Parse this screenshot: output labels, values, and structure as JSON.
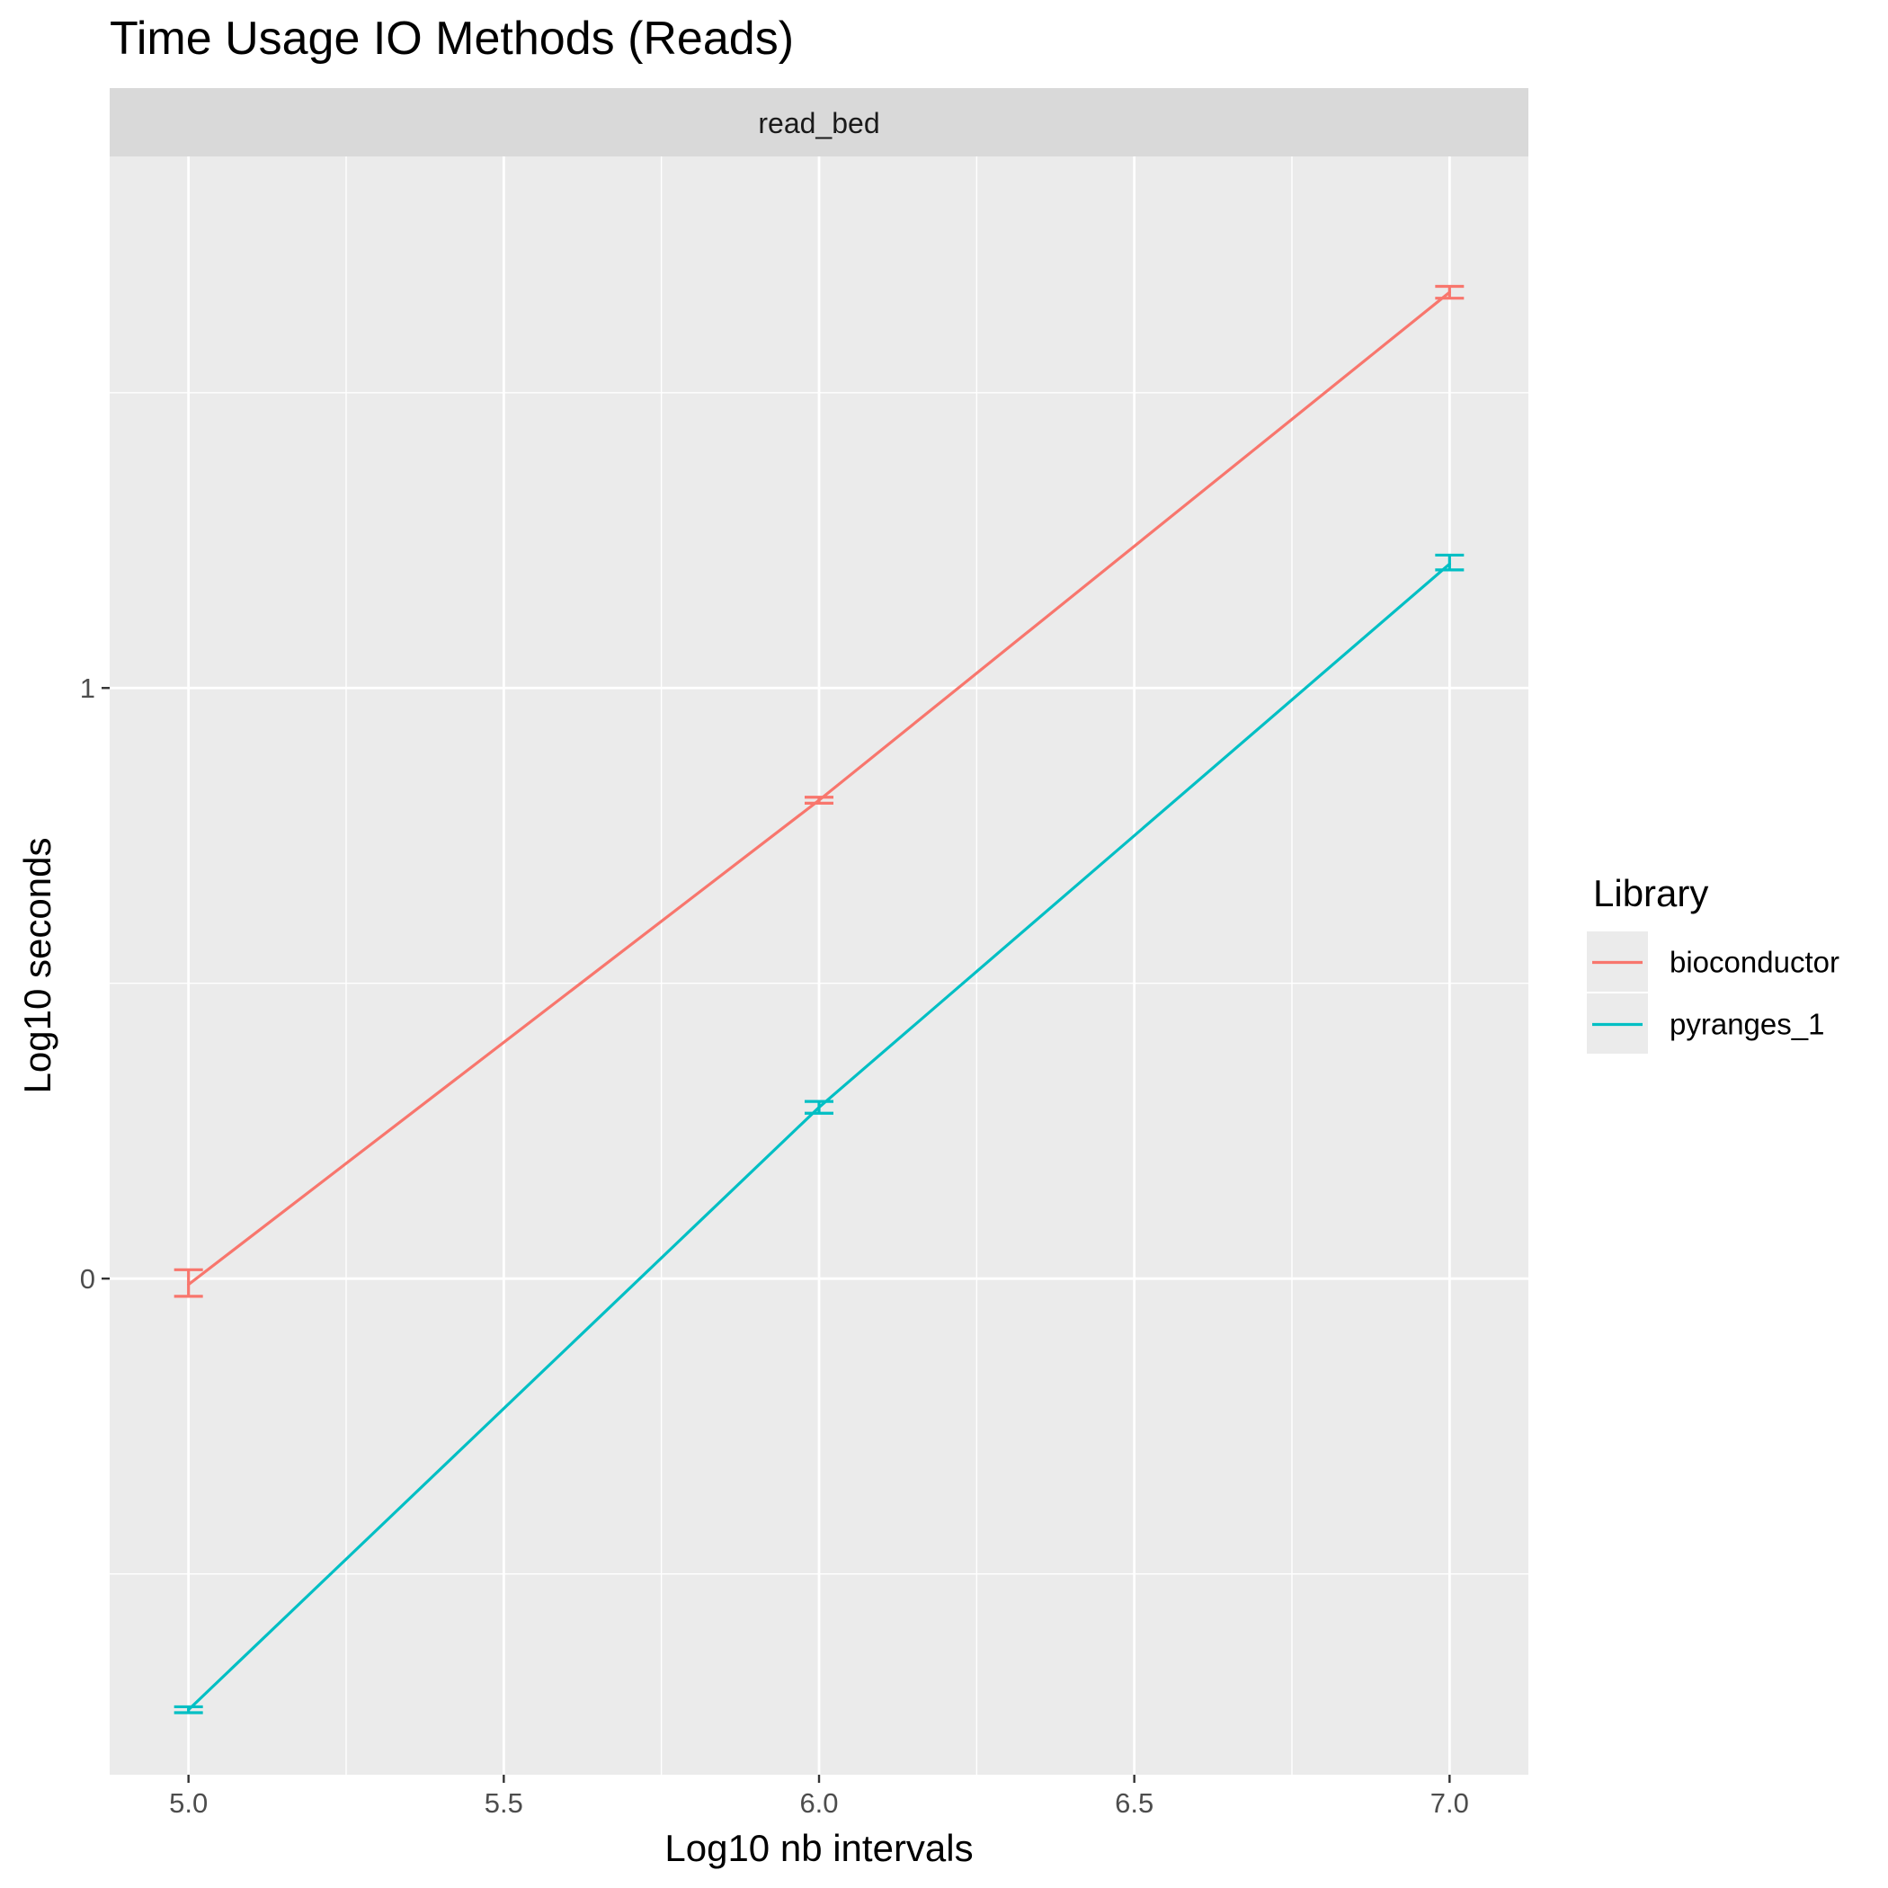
{
  "chart_data": {
    "type": "line",
    "title": "Time Usage IO Methods (Reads)",
    "facet": "read_bed",
    "xlabel": "Log10 nb intervals",
    "ylabel": "Log10 seconds",
    "x": [
      5.0,
      6.0,
      7.0
    ],
    "xlim": [
      4.875,
      7.125
    ],
    "ylim": [
      -0.84,
      1.9
    ],
    "x_ticks": [
      5.0,
      5.5,
      6.0,
      6.5,
      7.0
    ],
    "x_tick_labels": [
      "5.0",
      "5.5",
      "6.0",
      "6.5",
      "7.0"
    ],
    "x_minor_ticks": [
      5.25,
      5.75,
      6.25,
      6.75
    ],
    "y_ticks": [
      0,
      1
    ],
    "y_tick_labels": [
      "0",
      "1"
    ],
    "y_minor_ticks": [
      -0.5,
      0.5,
      1.5
    ],
    "grid": true,
    "legend_title": "Library",
    "legend_position": "right",
    "series": [
      {
        "name": "bioconductor",
        "color": "#F8766D",
        "values": [
          -0.01,
          0.81,
          1.67
        ],
        "error_low": [
          -0.03,
          0.805,
          1.66
        ],
        "error_high": [
          0.015,
          0.815,
          1.68
        ]
      },
      {
        "name": "pyranges_1",
        "color": "#00BFC4",
        "values": [
          -0.73,
          0.29,
          1.21
        ],
        "error_low": [
          -0.735,
          0.28,
          1.2
        ],
        "error_high": [
          -0.725,
          0.3,
          1.225
        ]
      }
    ]
  }
}
